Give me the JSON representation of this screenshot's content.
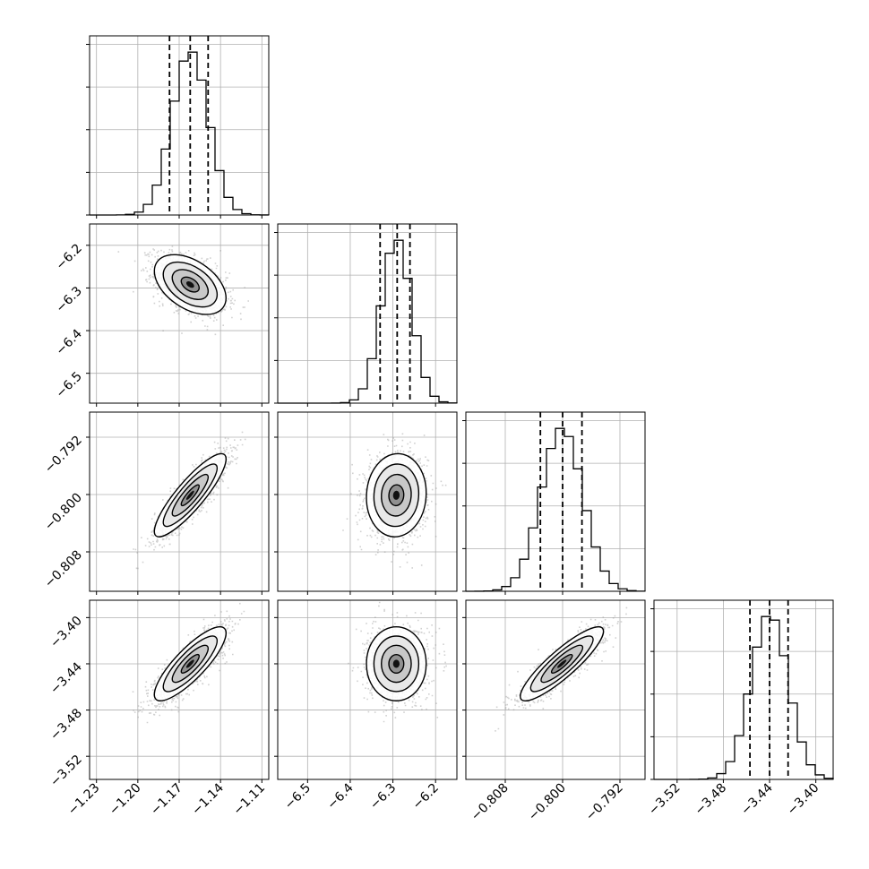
{
  "chart_data": {
    "type": "corner",
    "parameters": [
      {
        "range": [
          -1.235,
          -1.105
        ],
        "ticks": [
          -1.23,
          -1.2,
          -1.17,
          -1.14,
          -1.11
        ],
        "tick_labels": [
          "−1.23",
          "−1.20",
          "−1.17",
          "−1.14",
          "−1.11"
        ],
        "quantiles": [
          -1.177,
          -1.162,
          -1.149
        ],
        "mean": -1.162,
        "sd": 0.013
      },
      {
        "range": [
          -6.57,
          -6.15
        ],
        "ticks": [
          -6.5,
          -6.4,
          -6.3,
          -6.2
        ],
        "tick_labels": [
          "−6.5",
          "−6.4",
          "−6.3",
          "−6.2"
        ],
        "quantiles": [
          -6.33,
          -6.29,
          -6.26
        ],
        "mean": -6.292,
        "sd": 0.035
      },
      {
        "range": [
          -0.8135,
          -0.7885
        ],
        "ticks": [
          -0.808,
          -0.8,
          -0.792
        ],
        "tick_labels": [
          "−0.808",
          "−0.800",
          "−0.792"
        ],
        "quantiles": [
          -0.8031,
          -0.8,
          -0.7973
        ],
        "mean": -0.8001,
        "sd": 0.0029
      },
      {
        "range": [
          -3.54,
          -3.385
        ],
        "ticks": [
          -3.52,
          -3.48,
          -3.44,
          -3.4
        ],
        "tick_labels": [
          "−3.52",
          "−3.48",
          "−3.44",
          "−3.40"
        ],
        "quantiles": [
          -3.457,
          -3.44,
          -3.424
        ],
        "mean": -3.44,
        "sd": 0.016
      }
    ],
    "correlations": {
      "0-1": -0.45,
      "0-2": 0.87,
      "0-3": 0.83,
      "1-2": 0.05,
      "1-3": 0.0,
      "2-3": 0.88
    },
    "histogram_bins": 20,
    "histogram_style": "step",
    "quantile_line_style": "dashed",
    "contour_levels": 4,
    "grid": true,
    "colors": {
      "line": "#000000",
      "points": "#9a9a9a",
      "grid": "#b0b0b0",
      "background": "#ffffff"
    }
  }
}
